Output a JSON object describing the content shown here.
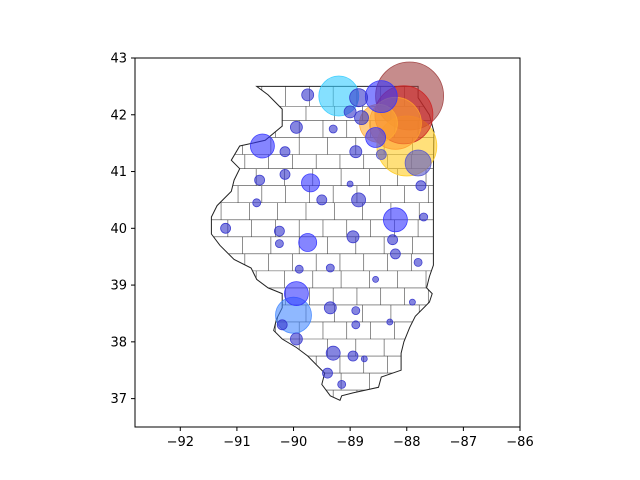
{
  "chart_data": {
    "type": "scatter",
    "title": "",
    "xlabel": "",
    "ylabel": "",
    "xlim": [
      -92.8,
      -86
    ],
    "ylim": [
      36.5,
      43
    ],
    "xticks": [
      -92,
      -91,
      -90,
      -89,
      -88,
      -87,
      -86
    ],
    "yticks": [
      37,
      38,
      39,
      40,
      41,
      42,
      43
    ],
    "xtick_labels": [
      "−92",
      "−91",
      "−90",
      "−89",
      "−88",
      "−87",
      "−86"
    ],
    "ytick_labels": [
      "37",
      "38",
      "39",
      "40",
      "41",
      "42",
      "43"
    ],
    "grid": false,
    "legend": "none",
    "basemap": "Illinois county boundaries",
    "marker_color_scale": {
      "small": "#3333cc",
      "medium": "#4f4fff",
      "large_low": "#5599ff",
      "large_mid": "#33ccff",
      "larger": "#ffaa33",
      "larger2": "#ffcc22",
      "largest": "#cc2222",
      "max": "#a04040"
    },
    "points": [
      {
        "lon": -87.95,
        "lat": 42.33,
        "size": 34,
        "color": "#a04040"
      },
      {
        "lon": -88.05,
        "lat": 42.0,
        "size": 29,
        "color": "#cc2222"
      },
      {
        "lon": -88.2,
        "lat": 41.85,
        "size": 26,
        "color": "#ff9f2e"
      },
      {
        "lon": -88.0,
        "lat": 41.45,
        "size": 30,
        "color": "#ffcc22"
      },
      {
        "lon": -88.5,
        "lat": 41.85,
        "size": 19,
        "color": "#ffaa33"
      },
      {
        "lon": -89.2,
        "lat": 42.33,
        "size": 20,
        "color": "#33ccff"
      },
      {
        "lon": -88.45,
        "lat": 42.32,
        "size": 16,
        "color": "#3333ff"
      },
      {
        "lon": -88.85,
        "lat": 42.3,
        "size": 9,
        "color": "#3333cc"
      },
      {
        "lon": -89.0,
        "lat": 42.05,
        "size": 6,
        "color": "#3333cc"
      },
      {
        "lon": -88.8,
        "lat": 41.95,
        "size": 7,
        "color": "#3333cc"
      },
      {
        "lon": -89.75,
        "lat": 42.35,
        "size": 6,
        "color": "#3333cc"
      },
      {
        "lon": -89.95,
        "lat": 41.78,
        "size": 6,
        "color": "#3333cc"
      },
      {
        "lon": -89.3,
        "lat": 41.75,
        "size": 4,
        "color": "#3333cc"
      },
      {
        "lon": -88.55,
        "lat": 41.6,
        "size": 10,
        "color": "#3333ff"
      },
      {
        "lon": -90.55,
        "lat": 41.45,
        "size": 12,
        "color": "#3333ff"
      },
      {
        "lon": -90.15,
        "lat": 41.35,
        "size": 5,
        "color": "#3333cc"
      },
      {
        "lon": -88.9,
        "lat": 41.35,
        "size": 6,
        "color": "#3333cc"
      },
      {
        "lon": -87.8,
        "lat": 41.15,
        "size": 13,
        "color": "#5555cc"
      },
      {
        "lon": -88.45,
        "lat": 41.3,
        "size": 5,
        "color": "#5555cc"
      },
      {
        "lon": -90.6,
        "lat": 40.85,
        "size": 5,
        "color": "#3333cc"
      },
      {
        "lon": -90.15,
        "lat": 40.95,
        "size": 5,
        "color": "#3333cc"
      },
      {
        "lon": -89.7,
        "lat": 40.8,
        "size": 9,
        "color": "#3333ff"
      },
      {
        "lon": -89.0,
        "lat": 40.78,
        "size": 3,
        "color": "#3333cc"
      },
      {
        "lon": -87.75,
        "lat": 40.75,
        "size": 5,
        "color": "#3333cc"
      },
      {
        "lon": -88.85,
        "lat": 40.5,
        "size": 7,
        "color": "#3333cc"
      },
      {
        "lon": -89.5,
        "lat": 40.5,
        "size": 5,
        "color": "#3333cc"
      },
      {
        "lon": -90.65,
        "lat": 40.45,
        "size": 4,
        "color": "#3333cc"
      },
      {
        "lon": -88.2,
        "lat": 40.15,
        "size": 12,
        "color": "#3333ff"
      },
      {
        "lon": -87.7,
        "lat": 40.2,
        "size": 4,
        "color": "#3333cc"
      },
      {
        "lon": -91.2,
        "lat": 40.0,
        "size": 5,
        "color": "#3333cc"
      },
      {
        "lon": -90.25,
        "lat": 39.95,
        "size": 5,
        "color": "#3333cc"
      },
      {
        "lon": -89.75,
        "lat": 39.75,
        "size": 9,
        "color": "#3333ff"
      },
      {
        "lon": -88.95,
        "lat": 39.85,
        "size": 6,
        "color": "#3333cc"
      },
      {
        "lon": -88.25,
        "lat": 39.8,
        "size": 5,
        "color": "#3333cc"
      },
      {
        "lon": -90.25,
        "lat": 39.73,
        "size": 4,
        "color": "#3333cc"
      },
      {
        "lon": -88.2,
        "lat": 39.55,
        "size": 5,
        "color": "#3333cc"
      },
      {
        "lon": -87.8,
        "lat": 39.4,
        "size": 4,
        "color": "#3333cc"
      },
      {
        "lon": -89.35,
        "lat": 39.3,
        "size": 4,
        "color": "#3333cc"
      },
      {
        "lon": -89.9,
        "lat": 39.28,
        "size": 4,
        "color": "#3333cc"
      },
      {
        "lon": -88.55,
        "lat": 39.1,
        "size": 3,
        "color": "#3333cc"
      },
      {
        "lon": -89.95,
        "lat": 38.85,
        "size": 12,
        "color": "#3333ff"
      },
      {
        "lon": -90.0,
        "lat": 38.47,
        "size": 18,
        "color": "#4488ff"
      },
      {
        "lon": -89.35,
        "lat": 38.6,
        "size": 6,
        "color": "#3333cc"
      },
      {
        "lon": -88.9,
        "lat": 38.55,
        "size": 4,
        "color": "#3333cc"
      },
      {
        "lon": -89.95,
        "lat": 38.05,
        "size": 6,
        "color": "#3333cc"
      },
      {
        "lon": -89.3,
        "lat": 37.8,
        "size": 7,
        "color": "#3333cc"
      },
      {
        "lon": -88.95,
        "lat": 37.75,
        "size": 5,
        "color": "#3333cc"
      },
      {
        "lon": -89.4,
        "lat": 37.45,
        "size": 5,
        "color": "#3333cc"
      },
      {
        "lon": -89.15,
        "lat": 37.25,
        "size": 4,
        "color": "#3333cc"
      },
      {
        "lon": -88.75,
        "lat": 37.7,
        "size": 3,
        "color": "#3333cc"
      },
      {
        "lon": -88.3,
        "lat": 38.35,
        "size": 3,
        "color": "#3333cc"
      },
      {
        "lon": -87.9,
        "lat": 38.7,
        "size": 3,
        "color": "#3333cc"
      },
      {
        "lon": -90.2,
        "lat": 38.3,
        "size": 5,
        "color": "#3333cc"
      },
      {
        "lon": -88.9,
        "lat": 38.3,
        "size": 4,
        "color": "#3333cc"
      }
    ]
  }
}
